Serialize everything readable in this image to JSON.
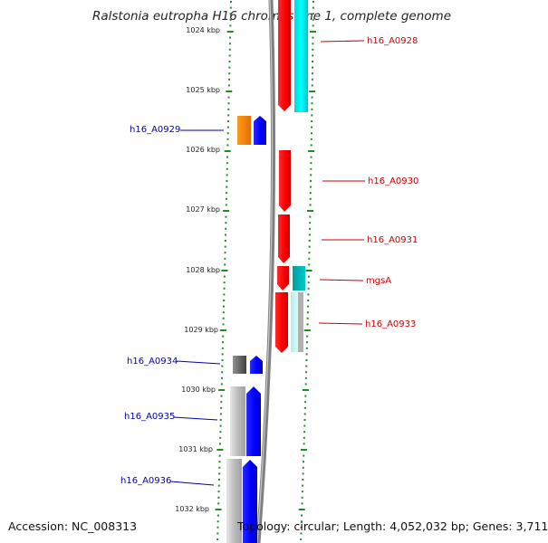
{
  "title": "Ralstonia eutropha H16 chromosome 1, complete genome",
  "footer": {
    "accession": "Accession: NC_008313",
    "stats": "Topology: circular; Length: 4,052,032 bp; Genes: 3,711"
  },
  "colors": {
    "scale_ticks": "#228b22",
    "forward_label": "#cc0000",
    "reverse_label": "#0000aa",
    "backbone": "#808080"
  },
  "scale": {
    "labels": [
      "1024 kbp",
      "1025 kbp",
      "1026 kbp",
      "1027 kbp",
      "1028 kbp",
      "1029 kbp",
      "1030 kbp",
      "1031 kbp",
      "1032 kbp"
    ]
  },
  "genes_forward": [
    {
      "label": "h16_A0928",
      "color": "#ff0000"
    },
    {
      "label": "h16_A0930",
      "color": "#ff0000"
    },
    {
      "label": "h16_A0931",
      "color": "#ff0000"
    },
    {
      "label": "mgsA",
      "color": "#ff0000"
    },
    {
      "label": "h16_A0933",
      "color": "#ff0000"
    }
  ],
  "genes_reverse": [
    {
      "label": "h16_A0929",
      "color": "#0000ff"
    },
    {
      "label": "h16_A0934",
      "color": "#0000ff"
    },
    {
      "label": "h16_A0935",
      "color": "#0000ff"
    },
    {
      "label": "h16_A0936",
      "color": "#0000ff"
    }
  ]
}
